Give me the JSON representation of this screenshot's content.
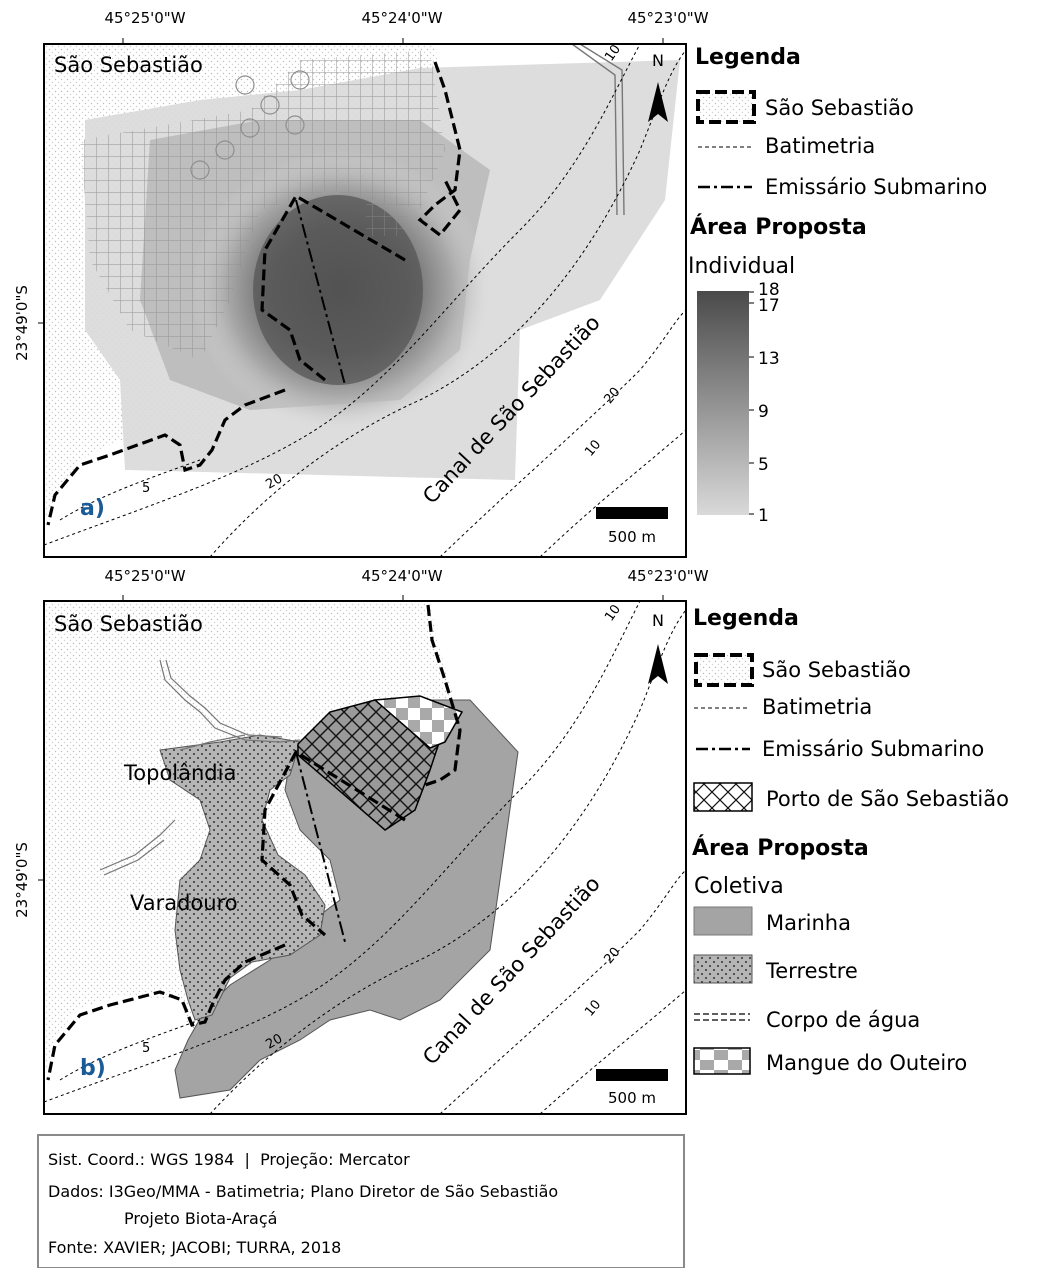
{
  "coords": {
    "lon": [
      "45°25'0\"W",
      "45°24'0\"W",
      "45°23'0\"W"
    ],
    "lat": "23°49'0\"S"
  },
  "north_symbol": "N",
  "map_a": {
    "city_label": "São Sebastião",
    "panel_label": "a)",
    "channel_label": "Canal de São Sebastião",
    "bathy_labels": [
      "5",
      "20",
      "20",
      "10",
      "10"
    ],
    "scalebar": "500 m"
  },
  "map_b": {
    "city_label": "São Sebastião",
    "panel_label": "b)",
    "channel_label": "Canal de São Sebastião",
    "place_labels": [
      "Topolândia",
      "Varadouro"
    ],
    "bathy_labels": [
      "5",
      "20",
      "20",
      "10",
      "10"
    ],
    "scalebar": "500 m"
  },
  "legend_a": {
    "title": "Legenda",
    "items": [
      "São Sebastião",
      "Batimetria",
      "Emissário Submarino"
    ],
    "area_title": "Área Proposta",
    "area_subtitle": "Individual",
    "ramp_ticks": [
      "18",
      "17",
      "13",
      "9",
      "5",
      "1"
    ],
    "ramp_colors": [
      "#4a4a4a",
      "#d9d9d9"
    ]
  },
  "legend_b": {
    "title": "Legenda",
    "items": [
      "São Sebastião",
      "Batimetria",
      "Emissário Submarino",
      "Porto de São Sebastião"
    ],
    "area_title": "Área Proposta",
    "area_subtitle": "Coletiva",
    "classes": [
      "Marinha",
      "Terrestre",
      "Corpo de água",
      "Mangue do Outeiro"
    ]
  },
  "footer": {
    "line1": "Sist. Coord.: WGS 1984  |  Projeção: Mercator",
    "line2": "Dados: I3Geo/MMA - Batimetria; Plano Diretor de São Sebastião",
    "line3": "Projeto Biota-Araçá",
    "line4": "Fonte: XAVIER; JACOBI; TURRA, 2018"
  }
}
